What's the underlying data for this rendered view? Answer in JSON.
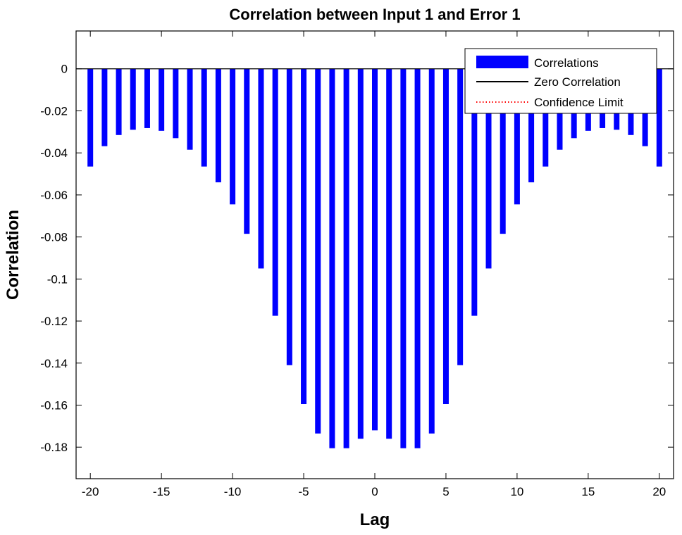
{
  "chart_data": {
    "type": "bar",
    "title": "Correlation between Input 1 and Error 1",
    "xlabel": "Lag",
    "ylabel": "Correlation",
    "xlim": [
      -21,
      21
    ],
    "ylim": [
      -0.195,
      0.018
    ],
    "xticks": [
      -20,
      -15,
      -10,
      -5,
      0,
      5,
      10,
      15,
      20
    ],
    "xtick_labels": [
      "-20",
      "-15",
      "-10",
      "-5",
      "0",
      "5",
      "10",
      "15",
      "20"
    ],
    "yticks": [
      0,
      -0.02,
      -0.04,
      -0.06,
      -0.08,
      -0.1,
      -0.12,
      -0.14,
      -0.16,
      -0.18
    ],
    "ytick_labels": [
      "0",
      "-0.02",
      "-0.04",
      "-0.06",
      "-0.08",
      "-0.1",
      "-0.12",
      "-0.14",
      "-0.16",
      "-0.18"
    ],
    "grid": false,
    "legend_position": "top-right",
    "series": [
      {
        "name": "Correlations",
        "color": "#0000ff",
        "x": [
          -20,
          -19,
          -18,
          -17,
          -16,
          -15,
          -14,
          -13,
          -12,
          -11,
          -10,
          -9,
          -8,
          -7,
          -6,
          -5,
          -4,
          -3,
          -2,
          -1,
          0,
          1,
          2,
          3,
          4,
          5,
          6,
          7,
          8,
          9,
          10,
          11,
          12,
          13,
          14,
          15,
          16,
          17,
          18,
          19,
          20
        ],
        "values": [
          -0.0465,
          -0.0368,
          -0.0315,
          -0.029,
          -0.0282,
          -0.0295,
          -0.033,
          -0.0385,
          -0.0465,
          -0.054,
          -0.0645,
          -0.0785,
          -0.095,
          -0.1175,
          -0.141,
          -0.1595,
          -0.1735,
          -0.1805,
          -0.1805,
          -0.176,
          -0.172,
          -0.176,
          -0.1805,
          -0.1805,
          -0.1735,
          -0.1595,
          -0.141,
          -0.1175,
          -0.095,
          -0.0785,
          -0.0645,
          -0.054,
          -0.0465,
          -0.0385,
          -0.033,
          -0.0295,
          -0.0282,
          -0.029,
          -0.0315,
          -0.0368,
          -0.0465
        ]
      }
    ],
    "legend": [
      {
        "label": "Correlations",
        "kind": "bar",
        "color": "#0000ff"
      },
      {
        "label": "Zero Correlation",
        "kind": "line",
        "color": "#000000"
      },
      {
        "label": "Confidence Limit",
        "kind": "dotted",
        "color": "#ff0000"
      }
    ]
  }
}
